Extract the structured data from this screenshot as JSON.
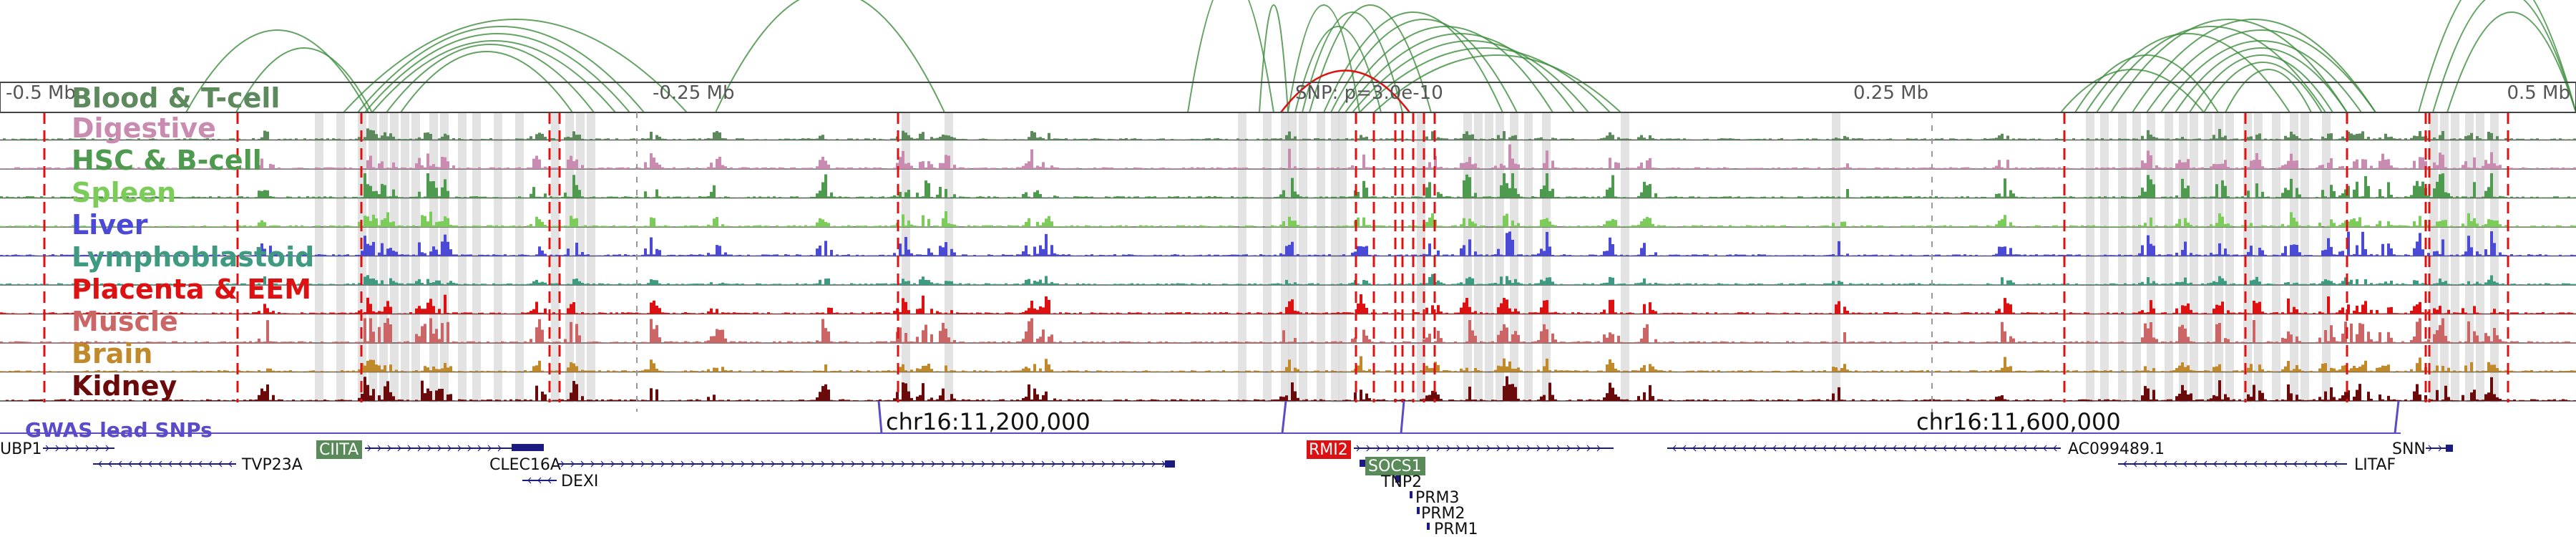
{
  "ruler": {
    "labels": [
      "-0.5 Mb",
      "-0.25 Mb",
      "SNP: p=3.0e-10",
      "0.25 Mb",
      "0.5 Mb"
    ]
  },
  "tracks": [
    {
      "name": "Blood & T-cell",
      "color": "#5c8a5c"
    },
    {
      "name": "Digestive",
      "color": "#c98bb0"
    },
    {
      "name": "HSC & B-cell",
      "color": "#4e9a4e"
    },
    {
      "name": "Spleen",
      "color": "#7ccc5a"
    },
    {
      "name": "Liver",
      "color": "#4a4ad6"
    },
    {
      "name": "Lymphoblastoid",
      "color": "#3f9a82"
    },
    {
      "name": "Placenta & EEM",
      "color": "#dd1111"
    },
    {
      "name": "Muscle",
      "color": "#cc6666"
    },
    {
      "name": "Brain",
      "color": "#c08a2a"
    },
    {
      "name": "Kidney",
      "color": "#6a0a0a"
    }
  ],
  "snp_row": {
    "label": "GWAS lead SNPs",
    "label_color": "#5a4bc8",
    "coord_labels": [
      "chr16:11,200,000",
      "chr16:11,600,000"
    ]
  },
  "genes": [
    {
      "label": "UBP1"
    },
    {
      "label": "CIITA",
      "highlight": "#5a8a5a"
    },
    {
      "label": "TVP23A"
    },
    {
      "label": "CLEC16A"
    },
    {
      "label": "DEXI"
    },
    {
      "label": "RMI2",
      "highlight": "#dd1111"
    },
    {
      "label": "SOCS1",
      "highlight": "#5a8a5a"
    },
    {
      "label": "TNP2"
    },
    {
      "label": "PRM3"
    },
    {
      "label": "PRM2"
    },
    {
      "label": "PRM1"
    },
    {
      "label": "AC099489.1"
    },
    {
      "label": "SNN"
    },
    {
      "label": "LITAF"
    }
  ],
  "colors": {
    "loop": "#3c8c3c",
    "red_loop": "#dd1111",
    "red_marker": "#e01010",
    "grey_marker": "#d9d9d9",
    "gene_color": "#1a1a80"
  }
}
